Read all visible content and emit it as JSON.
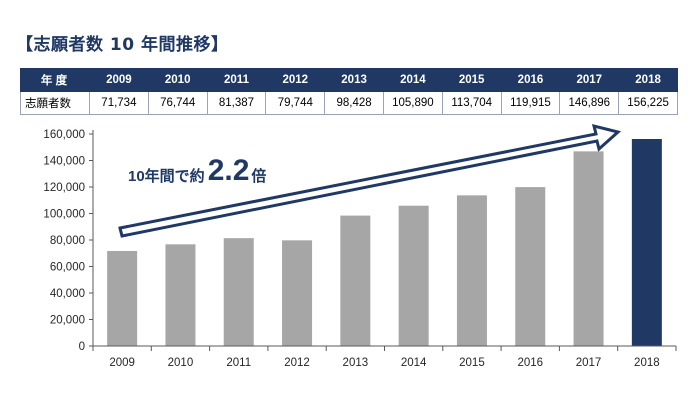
{
  "title": "【志願者数 10 年間推移】",
  "table": {
    "header_label": "年 度",
    "row_label": "志願者数",
    "years": [
      "2009",
      "2010",
      "2011",
      "2012",
      "2013",
      "2014",
      "2015",
      "2016",
      "2017",
      "2018"
    ],
    "values": [
      "71,734",
      "76,744",
      "81,387",
      "79,744",
      "98,428",
      "105,890",
      "113,704",
      "119,915",
      "146,896",
      "156,225"
    ]
  },
  "annotation": {
    "prefix": "10年間で約",
    "number": "2.2",
    "suffix": "倍"
  },
  "colors": {
    "bar": "#a6a6a6",
    "highlight_bar": "#1f3864",
    "header_bg": "#1f3864",
    "annotation_text": "#1f3864",
    "axis": "#595959"
  },
  "chart_data": {
    "type": "bar",
    "categories": [
      "2009",
      "2010",
      "2011",
      "2012",
      "2013",
      "2014",
      "2015",
      "2016",
      "2017",
      "2018"
    ],
    "values": [
      71734,
      76744,
      81387,
      79744,
      98428,
      105890,
      113704,
      119915,
      146896,
      156225
    ],
    "highlight_index": 9,
    "yticks": [
      "0",
      "20,000",
      "40,000",
      "60,000",
      "80,000",
      "100,000",
      "120,000",
      "140,000",
      "160,000"
    ],
    "ylim": [
      0,
      160000
    ],
    "grid": false,
    "legend": false
  }
}
